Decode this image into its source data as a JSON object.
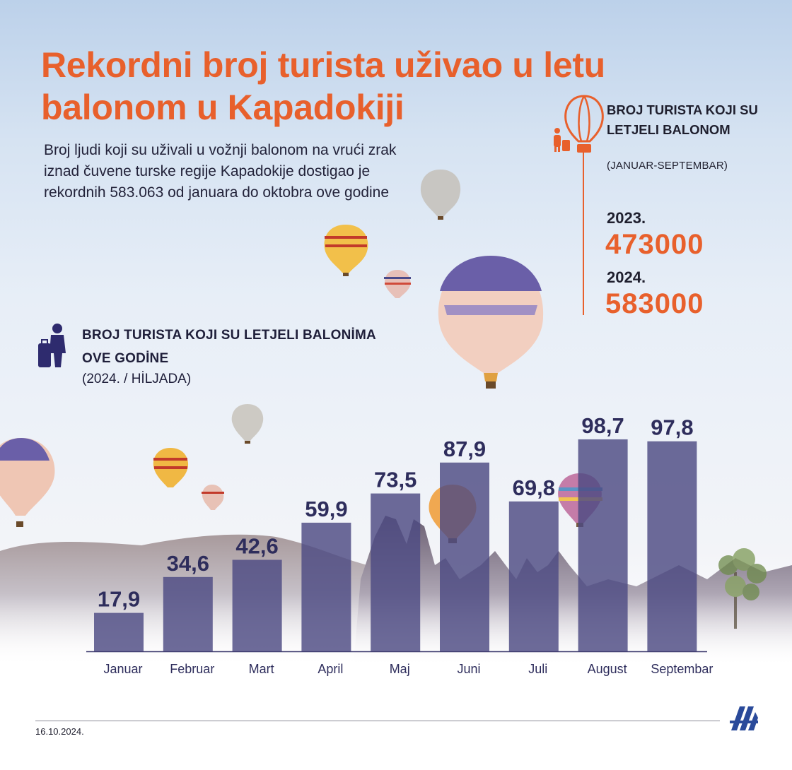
{
  "header": {
    "title": "Rekordni broj turista uživao u letu balonom u Kapadokiji",
    "subtitle": "Broj ljudi koji su uživali u vožnji balonom na vrući zrak iznad čuvene turske regije Kapadokije dostigao je rekordnih 583.063 od januara do oktobra ove godine"
  },
  "side": {
    "heading": "BROJ TURISTA KOJI SU LETJELI BALONOM",
    "period": "(JANUAR-SEPTEMBAR)",
    "years": [
      {
        "year": "2023.",
        "value": "473000"
      },
      {
        "year": "2024.",
        "value": "583000"
      }
    ],
    "icon": "hot-air-balloon-icon",
    "tourist_icon": "tourist-with-luggage-icon"
  },
  "chart_heading": {
    "title": "BROJ TURISTA KOJI SU LETJELI BALONİMA OVE GODİNE",
    "unit": "(2024. / HİLJADA)",
    "icon": "traveler-with-suitcase-icon"
  },
  "chart_data": {
    "type": "bar",
    "categories": [
      "Januar",
      "Februar",
      "Mart",
      "April",
      "Maj",
      "Juni",
      "Juli",
      "August",
      "Septembar"
    ],
    "values": [
      17.9,
      34.6,
      42.6,
      59.9,
      73.5,
      87.9,
      69.8,
      98.7,
      97.8
    ],
    "value_labels": [
      "17,9",
      "34,6",
      "42,6",
      "59,9",
      "73,5",
      "87,9",
      "69,8",
      "98,7",
      "97,8"
    ],
    "ylim": [
      0,
      100
    ],
    "grid": false,
    "legend": "none"
  },
  "footer": {
    "date": "16.10.2024.",
    "logo": "aa-logo-icon"
  },
  "colors": {
    "accent": "#e8602c",
    "bar": "#4d4a83",
    "text_dark": "#1f1f3a",
    "label": "#2e2d5c"
  }
}
